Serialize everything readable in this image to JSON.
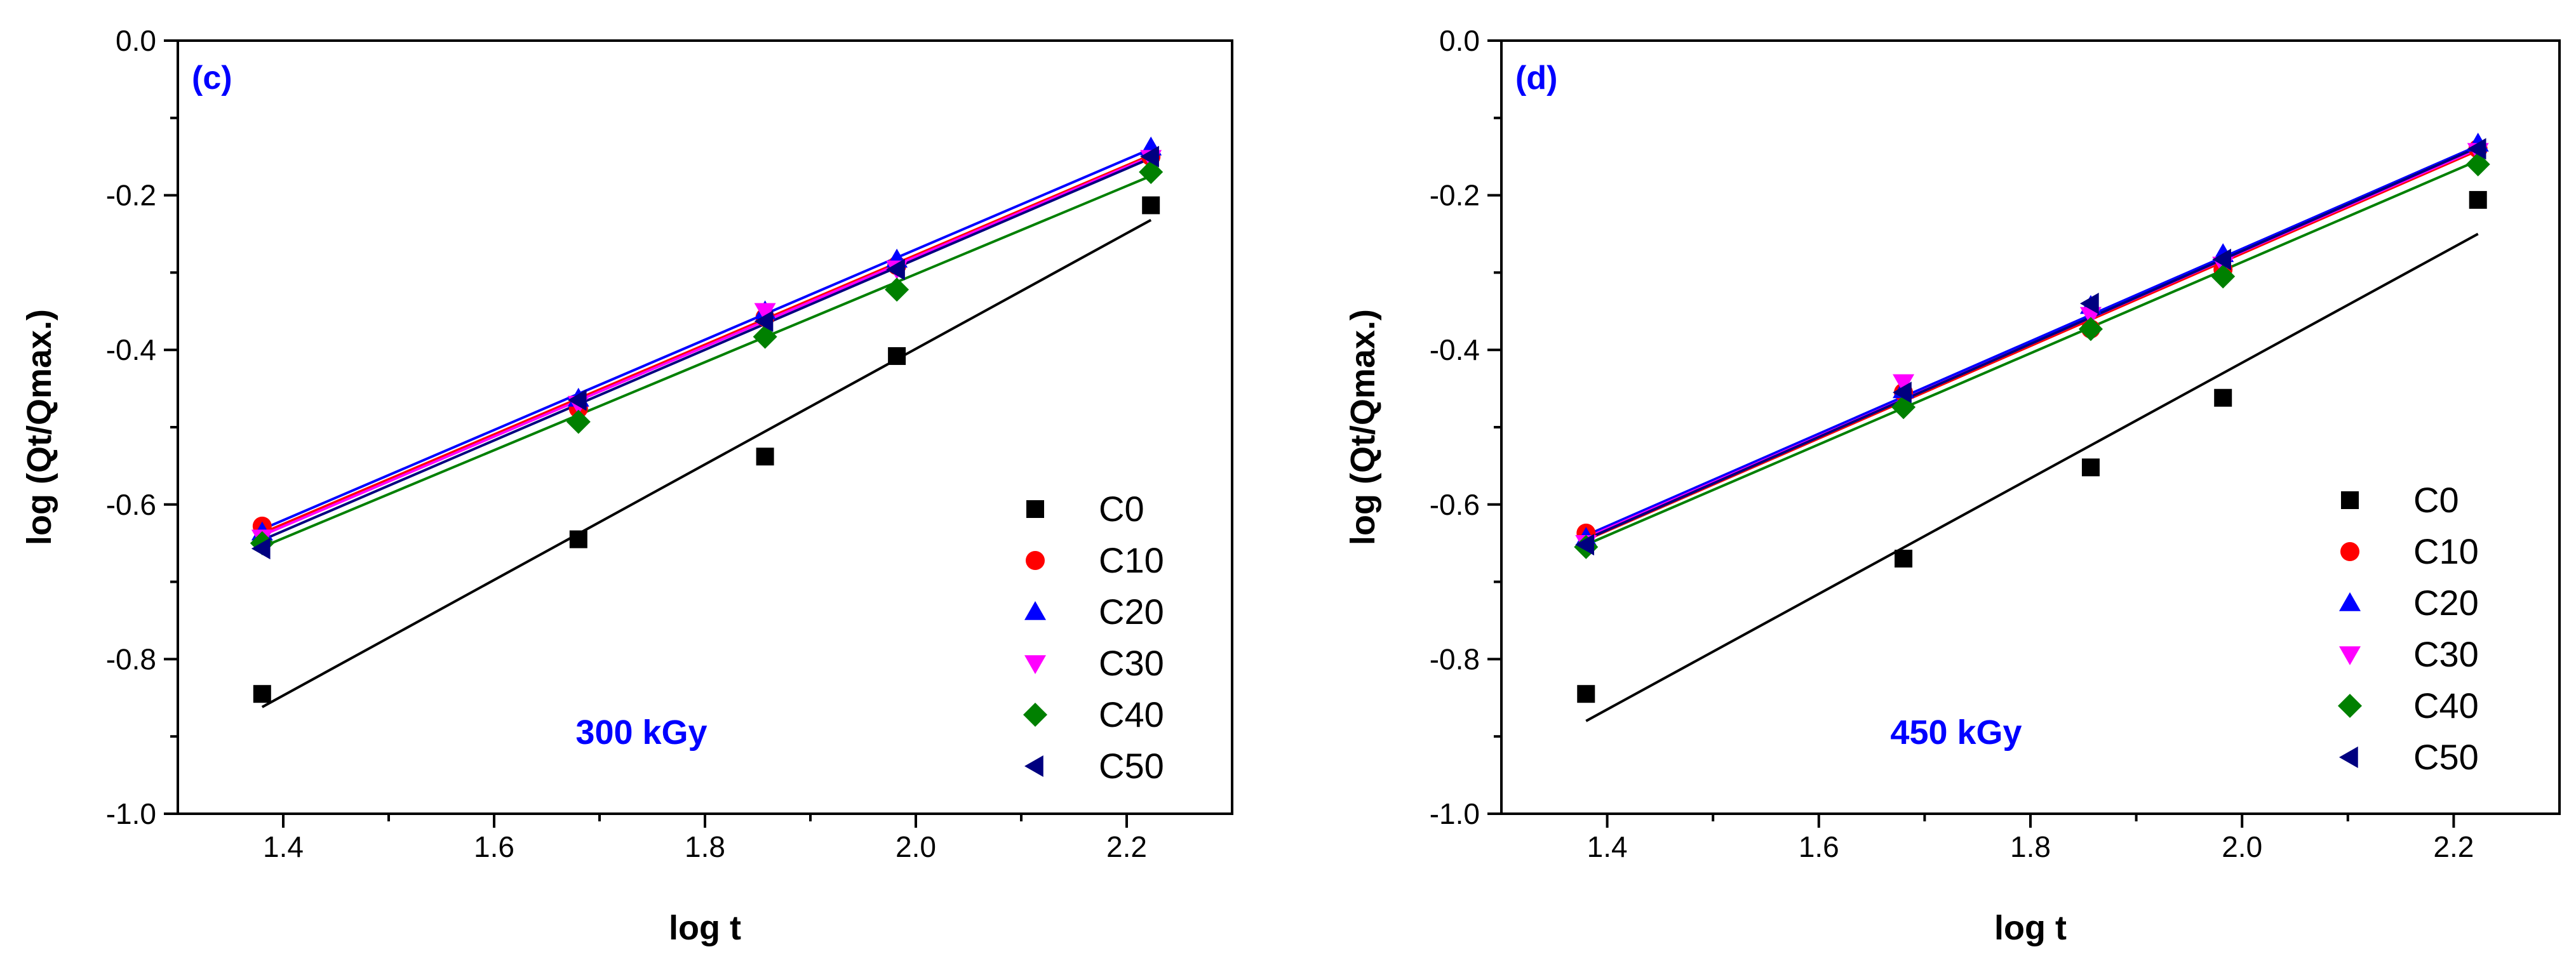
{
  "chart_data": [
    {
      "type": "scatter",
      "panel_label": "(c)",
      "annotation": "300 kGy",
      "xlabel": "log t",
      "ylabel": "log (Qt/Qmax.)",
      "xlim": [
        1.3,
        2.3
      ],
      "ylim": [
        -1.0,
        0.0
      ],
      "xticks": [
        "1.4",
        "1.6",
        "1.8",
        "2.0",
        "2.2"
      ],
      "yticks": [
        "0.0",
        "-0.2",
        "-0.4",
        "-0.6",
        "-0.8",
        "-1.0"
      ],
      "legend_position": "bottom-right",
      "series": [
        {
          "name": "C0",
          "marker": "square",
          "color": "#000000",
          "x": [
            1.38,
            1.68,
            1.857,
            1.982,
            2.223
          ],
          "y": [
            -0.845,
            -0.645,
            -0.538,
            -0.408,
            -0.213
          ],
          "fit": [
            [
              1.38,
              -0.862
            ],
            [
              2.223,
              -0.232
            ]
          ]
        },
        {
          "name": "C10",
          "marker": "circle",
          "color": "#ff0000",
          "x": [
            1.38,
            1.68,
            1.857,
            1.982,
            2.223
          ],
          "y": [
            -0.628,
            -0.476,
            -0.358,
            -0.291,
            -0.15
          ],
          "fit": [
            [
              1.38,
              -0.637
            ],
            [
              2.223,
              -0.148
            ]
          ]
        },
        {
          "name": "C20",
          "marker": "triangle-up",
          "color": "#0000ff",
          "x": [
            1.38,
            1.68,
            1.857,
            1.982,
            2.223
          ],
          "y": [
            -0.636,
            -0.463,
            -0.35,
            -0.283,
            -0.138
          ],
          "fit": [
            [
              1.38,
              -0.632
            ],
            [
              2.223,
              -0.14
            ]
          ]
        },
        {
          "name": "C30",
          "marker": "triangle-down",
          "color": "#ff00ff",
          "x": [
            1.38,
            1.68,
            1.857,
            1.982,
            2.223
          ],
          "y": [
            -0.643,
            -0.47,
            -0.35,
            -0.295,
            -0.152
          ],
          "fit": [
            [
              1.38,
              -0.64
            ],
            [
              2.223,
              -0.15
            ]
          ]
        },
        {
          "name": "C40",
          "marker": "diamond",
          "color": "#008000",
          "x": [
            1.38,
            1.68,
            1.857,
            1.982,
            2.223
          ],
          "y": [
            -0.65,
            -0.493,
            -0.383,
            -0.322,
            -0.17
          ],
          "fit": [
            [
              1.38,
              -0.655
            ],
            [
              2.223,
              -0.175
            ]
          ]
        },
        {
          "name": "C50",
          "marker": "triangle-left",
          "color": "#000080",
          "x": [
            1.38,
            1.68,
            1.857,
            1.982,
            2.223
          ],
          "y": [
            -0.657,
            -0.465,
            -0.363,
            -0.296,
            -0.15
          ],
          "fit": [
            [
              1.38,
              -0.646
            ],
            [
              2.223,
              -0.152
            ]
          ]
        }
      ]
    },
    {
      "type": "scatter",
      "panel_label": "(d)",
      "annotation": "450 kGy",
      "xlabel": "log t",
      "ylabel": "log (Qt/Qmax.)",
      "xlim": [
        1.3,
        2.3
      ],
      "ylim": [
        -1.0,
        0.0
      ],
      "xticks": [
        "1.4",
        "1.6",
        "1.8",
        "2.0",
        "2.2"
      ],
      "yticks": [
        "0.0",
        "-0.2",
        "-0.4",
        "-0.6",
        "-0.8",
        "-1.0"
      ],
      "legend_position": "bottom-right",
      "series": [
        {
          "name": "C0",
          "marker": "square",
          "color": "#000000",
          "x": [
            1.38,
            1.68,
            1.857,
            1.982,
            2.223
          ],
          "y": [
            -0.845,
            -0.67,
            -0.552,
            -0.462,
            -0.206
          ],
          "fit": [
            [
              1.38,
              -0.88
            ],
            [
              2.223,
              -0.25
            ]
          ]
        },
        {
          "name": "C10",
          "marker": "circle",
          "color": "#ff0000",
          "x": [
            1.38,
            1.68,
            1.857,
            1.982,
            2.223
          ],
          "y": [
            -0.637,
            -0.455,
            -0.373,
            -0.296,
            -0.14
          ],
          "fit": [
            [
              1.38,
              -0.646
            ],
            [
              2.223,
              -0.142
            ]
          ]
        },
        {
          "name": "C20",
          "marker": "triangle-up",
          "color": "#0000ff",
          "x": [
            1.38,
            1.68,
            1.857,
            1.982,
            2.223
          ],
          "y": [
            -0.643,
            -0.452,
            -0.343,
            -0.276,
            -0.133
          ],
          "fit": [
            [
              1.38,
              -0.64
            ],
            [
              2.223,
              -0.136
            ]
          ]
        },
        {
          "name": "C30",
          "marker": "triangle-down",
          "color": "#ff00ff",
          "x": [
            1.38,
            1.68,
            1.857,
            1.982,
            2.223
          ],
          "y": [
            -0.65,
            -0.442,
            -0.355,
            -0.29,
            -0.143
          ],
          "fit": [
            [
              1.38,
              -0.643
            ],
            [
              2.223,
              -0.14
            ]
          ]
        },
        {
          "name": "C40",
          "marker": "diamond",
          "color": "#008000",
          "x": [
            1.38,
            1.68,
            1.857,
            1.982,
            2.223
          ],
          "y": [
            -0.655,
            -0.474,
            -0.373,
            -0.305,
            -0.16
          ],
          "fit": [
            [
              1.38,
              -0.652
            ],
            [
              2.223,
              -0.155
            ]
          ]
        },
        {
          "name": "C50",
          "marker": "triangle-left",
          "color": "#000080",
          "x": [
            1.38,
            1.68,
            1.857,
            1.982,
            2.223
          ],
          "y": [
            -0.652,
            -0.455,
            -0.34,
            -0.283,
            -0.14
          ],
          "fit": [
            [
              1.38,
              -0.645
            ],
            [
              2.223,
              -0.138
            ]
          ]
        }
      ]
    }
  ]
}
